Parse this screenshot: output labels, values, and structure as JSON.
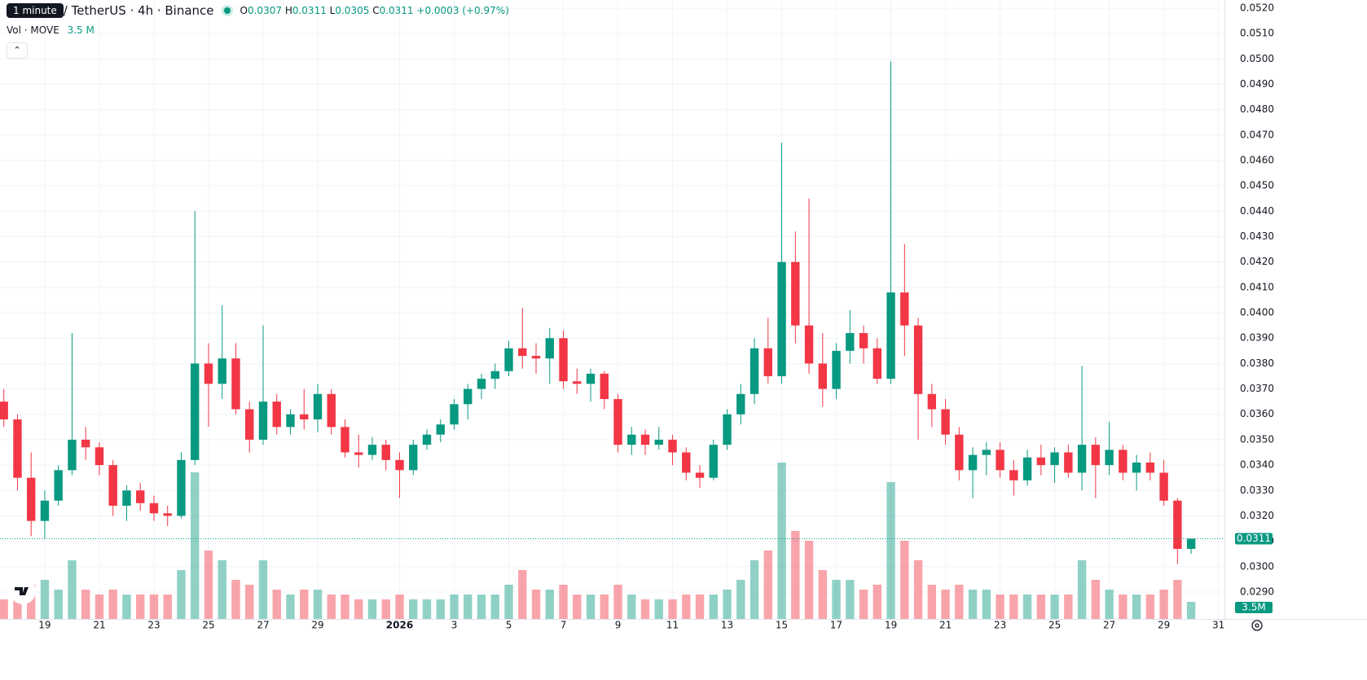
{
  "chart_data": {
    "type": "candlestick",
    "title": "/ TetherUS · 4h · Binance",
    "tooltip": "1 minute",
    "ohlc_labels": [
      "O",
      "H",
      "L",
      "C"
    ],
    "change": "+0.0003 (+0.97%)",
    "volume_legend": "Vol · MOVE",
    "volume_legend_value": "3.5 M",
    "volume_tag": "3.5M",
    "up_color": "#089981",
    "down_color": "#f23645",
    "grid": true,
    "x": [
      17.5,
      18,
      18.5,
      19,
      19.5,
      20,
      20.5,
      21,
      21.5,
      22,
      22.5,
      23,
      23.5,
      24,
      24.5,
      25,
      25.5,
      26,
      26.5,
      27,
      27.5,
      28,
      28.5,
      29,
      29.5,
      30,
      30.5,
      31,
      31.5,
      32,
      32.5,
      33,
      33.5,
      34,
      34.5,
      35,
      35.5,
      36,
      36.5,
      37,
      37.5,
      38,
      38.5,
      39,
      39.5,
      40,
      40.5,
      41,
      41.5,
      42,
      42.5,
      43,
      43.5,
      44,
      44.5,
      45,
      45.5,
      46,
      46.5,
      47,
      47.5,
      48,
      48.5,
      49,
      49.5,
      50,
      50.5,
      51,
      51.5,
      52,
      52.5,
      53,
      53.5,
      54,
      54.5,
      55,
      55.5,
      56,
      56.5,
      57,
      57.5,
      58,
      58.5,
      59,
      59.5,
      60,
      60.5,
      61
    ],
    "open": [
      0.0365,
      0.0358,
      0.0335,
      0.0318,
      0.0326,
      0.0338,
      0.035,
      0.0347,
      0.034,
      0.0324,
      0.033,
      0.0325,
      0.0321,
      0.032,
      0.0342,
      0.038,
      0.0372,
      0.0382,
      0.0362,
      0.035,
      0.0365,
      0.0355,
      0.036,
      0.0358,
      0.0368,
      0.0355,
      0.0345,
      0.0344,
      0.0348,
      0.0342,
      0.0338,
      0.0348,
      0.0352,
      0.0356,
      0.0364,
      0.037,
      0.0374,
      0.0377,
      0.0386,
      0.0383,
      0.0382,
      0.039,
      0.0373,
      0.0372,
      0.0376,
      0.0366,
      0.0348,
      0.0352,
      0.0348,
      0.035,
      0.0345,
      0.0337,
      0.0335,
      0.0348,
      0.036,
      0.0368,
      0.0386,
      0.0375,
      0.042,
      0.0395,
      0.038,
      0.037,
      0.0385,
      0.0392,
      0.0386,
      0.0374,
      0.0408,
      0.0395,
      0.0368,
      0.0362,
      0.0352,
      0.0338,
      0.0344,
      0.0346,
      0.0338,
      0.0334,
      0.0343,
      0.034,
      0.0345,
      0.0337,
      0.0348,
      0.034,
      0.0346,
      0.0337,
      0.0341,
      0.0337,
      0.0326,
      0.0307
    ],
    "high": [
      0.037,
      0.036,
      0.0345,
      0.033,
      0.034,
      0.0392,
      0.0355,
      0.0349,
      0.0342,
      0.0332,
      0.0333,
      0.0328,
      0.0324,
      0.0345,
      0.044,
      0.0388,
      0.0403,
      0.0388,
      0.0365,
      0.0395,
      0.0368,
      0.0362,
      0.037,
      0.0372,
      0.037,
      0.0358,
      0.0352,
      0.0351,
      0.035,
      0.0345,
      0.035,
      0.0354,
      0.0358,
      0.0366,
      0.0372,
      0.0376,
      0.038,
      0.0389,
      0.0402,
      0.0388,
      0.0394,
      0.0393,
      0.0378,
      0.0378,
      0.0377,
      0.0368,
      0.0355,
      0.0354,
      0.0355,
      0.0352,
      0.0347,
      0.034,
      0.035,
      0.0362,
      0.0372,
      0.039,
      0.0398,
      0.0467,
      0.0432,
      0.0445,
      0.0392,
      0.0388,
      0.0401,
      0.0395,
      0.039,
      0.0499,
      0.0427,
      0.0398,
      0.0372,
      0.0366,
      0.0355,
      0.0347,
      0.0349,
      0.0349,
      0.0342,
      0.0346,
      0.0348,
      0.0347,
      0.0348,
      0.0379,
      0.0351,
      0.0357,
      0.0348,
      0.0344,
      0.0345,
      0.0342,
      0.0327,
      0.0311
    ],
    "low": [
      0.0355,
      0.033,
      0.0312,
      0.0311,
      0.0324,
      0.0336,
      0.0342,
      0.0336,
      0.032,
      0.0318,
      0.0322,
      0.0318,
      0.0316,
      0.0319,
      0.034,
      0.0355,
      0.0366,
      0.036,
      0.0345,
      0.0348,
      0.0352,
      0.0352,
      0.0354,
      0.0353,
      0.0352,
      0.0343,
      0.0339,
      0.0342,
      0.0338,
      0.0327,
      0.0336,
      0.0346,
      0.0349,
      0.0354,
      0.0358,
      0.0366,
      0.037,
      0.0375,
      0.0378,
      0.0376,
      0.0372,
      0.037,
      0.0368,
      0.0365,
      0.0362,
      0.0345,
      0.0344,
      0.0344,
      0.0346,
      0.034,
      0.0334,
      0.0331,
      0.0334,
      0.0346,
      0.0356,
      0.0364,
      0.0372,
      0.0372,
      0.0388,
      0.0376,
      0.0363,
      0.0366,
      0.038,
      0.038,
      0.0372,
      0.0372,
      0.0383,
      0.035,
      0.0355,
      0.0348,
      0.0334,
      0.0327,
      0.0336,
      0.0335,
      0.0328,
      0.0332,
      0.0336,
      0.0333,
      0.0335,
      0.033,
      0.0327,
      0.0336,
      0.0334,
      0.033,
      0.0334,
      0.0324,
      0.0301,
      0.0305
    ],
    "close": [
      0.0358,
      0.0335,
      0.0318,
      0.0326,
      0.0338,
      0.035,
      0.0347,
      0.034,
      0.0324,
      0.033,
      0.0325,
      0.0321,
      0.032,
      0.0342,
      0.038,
      0.0372,
      0.0382,
      0.0362,
      0.035,
      0.0365,
      0.0355,
      0.036,
      0.0358,
      0.0368,
      0.0355,
      0.0345,
      0.0344,
      0.0348,
      0.0342,
      0.0338,
      0.0348,
      0.0352,
      0.0356,
      0.0364,
      0.037,
      0.0374,
      0.0377,
      0.0386,
      0.0383,
      0.0382,
      0.039,
      0.0373,
      0.0372,
      0.0376,
      0.0366,
      0.0348,
      0.0352,
      0.0348,
      0.035,
      0.0345,
      0.0337,
      0.0335,
      0.0348,
      0.036,
      0.0368,
      0.0386,
      0.0375,
      0.042,
      0.0395,
      0.038,
      0.037,
      0.0385,
      0.0392,
      0.0386,
      0.0374,
      0.0408,
      0.0395,
      0.0368,
      0.0362,
      0.0352,
      0.0338,
      0.0344,
      0.0346,
      0.0338,
      0.0334,
      0.0343,
      0.034,
      0.0345,
      0.0337,
      0.0348,
      0.034,
      0.0346,
      0.0337,
      0.0341,
      0.0337,
      0.0326,
      0.0307,
      0.0311
    ],
    "volume": [
      4,
      6,
      7,
      8,
      6,
      12,
      6,
      5,
      6,
      5,
      5,
      5,
      5,
      10,
      30,
      14,
      12,
      8,
      7,
      12,
      6,
      5,
      6,
      6,
      5,
      5,
      4,
      4,
      4,
      5,
      4,
      4,
      4,
      5,
      5,
      5,
      5,
      7,
      10,
      6,
      6,
      7,
      5,
      5,
      5,
      7,
      5,
      4,
      4,
      4,
      5,
      5,
      5,
      6,
      8,
      12,
      14,
      32,
      18,
      16,
      10,
      8,
      8,
      6,
      7,
      28,
      16,
      12,
      7,
      6,
      7,
      6,
      6,
      5,
      5,
      5,
      5,
      5,
      5,
      12,
      8,
      6,
      5,
      5,
      5,
      6,
      8,
      3.5
    ],
    "vlim": [
      0,
      50
    ],
    "xlim": [
      17.36,
      62.22
    ],
    "xticks": [
      19,
      21,
      23,
      25,
      27,
      29,
      {
        "value": 32,
        "label": "2026"
      },
      {
        "value": 34,
        "label": "3"
      },
      {
        "value": 36,
        "label": "5"
      },
      {
        "value": 38,
        "label": "7"
      },
      {
        "value": 40,
        "label": "9"
      },
      {
        "value": 42,
        "label": "11"
      },
      {
        "value": 44,
        "label": "13"
      },
      {
        "value": 46,
        "label": "15"
      },
      {
        "value": 48,
        "label": "17"
      },
      {
        "value": 50,
        "label": "19"
      },
      {
        "value": 52,
        "label": "21"
      },
      {
        "value": 54,
        "label": "23"
      },
      {
        "value": 56,
        "label": "25"
      },
      {
        "value": 58,
        "label": "27"
      },
      {
        "value": 60,
        "label": "29"
      },
      {
        "value": 62,
        "label": "31"
      }
    ],
    "ylim": [
      0.02794,
      0.05232
    ],
    "yticks": [
      {
        "value": 0.029,
        "label": "0.0290"
      },
      {
        "value": 0.03,
        "label": "0.0300"
      },
      {
        "value": 0.031,
        "label": "0.0310"
      },
      {
        "value": 0.032,
        "label": "0.0320"
      },
      {
        "value": 0.033,
        "label": "0.0330"
      },
      {
        "value": 0.034,
        "label": "0.0340"
      },
      {
        "value": 0.035,
        "label": "0.0350"
      },
      {
        "value": 0.036,
        "label": "0.0360"
      },
      {
        "value": 0.037,
        "label": "0.0370"
      },
      {
        "value": 0.038,
        "label": "0.0380"
      },
      {
        "value": 0.039,
        "label": "0.0390"
      },
      {
        "value": 0.04,
        "label": "0.0400"
      },
      {
        "value": 0.041,
        "label": "0.0410"
      },
      {
        "value": 0.042,
        "label": "0.0420"
      },
      {
        "value": 0.043,
        "label": "0.0430"
      },
      {
        "value": 0.044,
        "label": "0.0440"
      },
      {
        "value": 0.045,
        "label": "0.0450"
      },
      {
        "value": 0.046,
        "label": "0.0460"
      },
      {
        "value": 0.047,
        "label": "0.0470"
      },
      {
        "value": 0.048,
        "label": "0.0480"
      },
      {
        "value": 0.049,
        "label": "0.0490"
      },
      {
        "value": 0.05,
        "label": "0.0500"
      },
      {
        "value": 0.051,
        "label": "0.0510"
      },
      {
        "value": 0.052,
        "label": "0.0520"
      }
    ]
  }
}
